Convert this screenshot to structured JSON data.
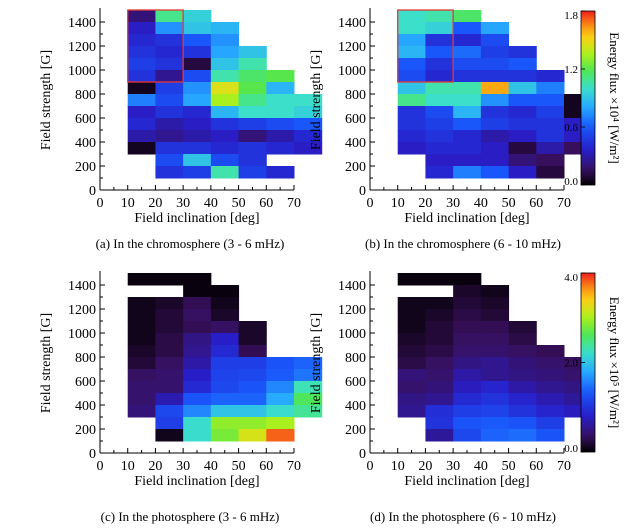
{
  "chart_data": [
    {
      "type": "heatmap",
      "id": "a",
      "caption": "(a) In the chromosphere (3 - 6 mHz)",
      "xlabel": "Field inclination [deg]",
      "ylabel": "Field strength [G]",
      "xlim": [
        0,
        70
      ],
      "ylim": [
        0,
        1500
      ],
      "xticks": [
        0,
        10,
        20,
        30,
        40,
        50,
        60,
        70
      ],
      "yticks": [
        0,
        200,
        400,
        600,
        800,
        1000,
        1200,
        1400
      ],
      "xticks_text": [
        "0",
        "10",
        "20",
        "30",
        "40",
        "50",
        "60",
        "70"
      ],
      "yticks_text": [
        "0",
        "200",
        "400",
        "600",
        "800",
        "1000",
        "1200",
        "1400"
      ],
      "cell": {
        "dx": 10,
        "dy": 100
      },
      "vmin": 0,
      "vmax": 1.8,
      "colorbar": "top",
      "highlight_box": {
        "x": [
          10,
          30
        ],
        "y": [
          900,
          1500
        ],
        "color": "#e53935"
      },
      "rows": [
        {
          "y0": 1400,
          "x0": 10,
          "values": [
            0.2,
            1.1,
            0.95
          ]
        },
        {
          "y0": 1300,
          "x0": 10,
          "values": [
            0.35,
            0.75,
            0.9,
            0.85
          ]
        },
        {
          "y0": 1200,
          "x0": 10,
          "values": [
            0.4,
            0.45,
            0.6,
            0.75
          ]
        },
        {
          "y0": 1100,
          "x0": 10,
          "values": [
            0.45,
            0.4,
            0.45,
            0.8,
            0.9
          ]
        },
        {
          "y0": 1000,
          "x0": 10,
          "values": [
            0.5,
            0.45,
            0.1,
            0.9,
            1.05
          ]
        },
        {
          "y0": 900,
          "x0": 10,
          "values": [
            0.45,
            0.25,
            0.55,
            1.05,
            1.15,
            1.2
          ]
        },
        {
          "y0": 800,
          "x0": 10,
          "values": [
            0.05,
            0.5,
            0.75,
            1.45,
            1.2,
            0.85
          ]
        },
        {
          "y0": 700,
          "x0": 10,
          "values": [
            0.7,
            0.55,
            0.8,
            1.35,
            1.1,
            1.0,
            1.0
          ]
        },
        {
          "y0": 600,
          "x0": 10,
          "values": [
            0.35,
            0.45,
            0.4,
            0.85,
            1.0,
            1.0,
            0.95
          ]
        },
        {
          "y0": 500,
          "x0": 10,
          "values": [
            0.4,
            0.3,
            0.35,
            0.45,
            0.5,
            0.55,
            0.6
          ]
        },
        {
          "y0": 400,
          "x0": 10,
          "values": [
            0.3,
            0.25,
            0.3,
            0.35,
            0.2,
            0.3,
            0.4
          ]
        },
        {
          "y0": 300,
          "x0": 10,
          "values": [
            0.05,
            0.45,
            0.45,
            0.4,
            0.45,
            0.4,
            0.35
          ]
        },
        {
          "y0": 200,
          "x0": 20,
          "values": [
            0.55,
            0.9,
            0.55,
            0.45
          ]
        },
        {
          "y0": 100,
          "x0": 20,
          "values": [
            0.45,
            0.5,
            1.05,
            0.5,
            0.4
          ]
        }
      ]
    },
    {
      "type": "heatmap",
      "id": "b",
      "caption": "(b) In the chromosphere (6 - 10 mHz)",
      "xlabel": "Field inclination [deg]",
      "ylabel": "Field strength [G]",
      "xlim": [
        0,
        70
      ],
      "ylim": [
        0,
        1500
      ],
      "xticks": [
        0,
        10,
        20,
        30,
        40,
        50,
        60,
        70
      ],
      "yticks": [
        0,
        200,
        400,
        600,
        800,
        1000,
        1200,
        1400
      ],
      "xticks_text": [
        "0",
        "10",
        "20",
        "30",
        "40",
        "50",
        "60",
        "70"
      ],
      "yticks_text": [
        "0",
        "200",
        "400",
        "600",
        "800",
        "1000",
        "1200",
        "1400"
      ],
      "cell": {
        "dx": 10,
        "dy": 100
      },
      "vmin": 0,
      "vmax": 1.8,
      "colorbar": "top",
      "highlight_box": {
        "x": [
          10,
          30
        ],
        "y": [
          900,
          1500
        ],
        "color": "#e53935"
      },
      "rows": [
        {
          "y0": 1400,
          "x0": 10,
          "values": [
            1.0,
            1.05,
            1.15
          ]
        },
        {
          "y0": 1300,
          "x0": 10,
          "values": [
            1.0,
            0.95,
            0.6,
            0.8
          ]
        },
        {
          "y0": 1200,
          "x0": 10,
          "values": [
            0.8,
            0.45,
            0.4,
            0.55
          ]
        },
        {
          "y0": 1100,
          "x0": 10,
          "values": [
            0.85,
            0.6,
            0.65,
            0.5,
            0.45
          ]
        },
        {
          "y0": 1000,
          "x0": 10,
          "values": [
            0.6,
            0.45,
            0.55,
            0.55,
            0.6
          ]
        },
        {
          "y0": 900,
          "x0": 10,
          "values": [
            0.55,
            0.4,
            0.45,
            0.45,
            0.45,
            0.4
          ]
        },
        {
          "y0": 800,
          "x0": 10,
          "values": [
            0.9,
            1.05,
            1.05,
            1.6,
            0.9,
            0.7
          ]
        },
        {
          "y0": 700,
          "x0": 10,
          "values": [
            1.1,
            1.0,
            1.0,
            0.75,
            0.6,
            0.6,
            0.05
          ]
        },
        {
          "y0": 600,
          "x0": 10,
          "values": [
            0.45,
            0.55,
            0.85,
            0.45,
            0.4,
            0.5,
            0.05
          ]
        },
        {
          "y0": 500,
          "x0": 10,
          "values": [
            0.45,
            0.5,
            0.6,
            0.5,
            0.45,
            0.45,
            0.35
          ]
        },
        {
          "y0": 400,
          "x0": 10,
          "values": [
            0.4,
            0.45,
            0.4,
            0.3,
            0.35,
            0.45,
            0.35
          ]
        },
        {
          "y0": 300,
          "x0": 10,
          "values": [
            0.35,
            0.4,
            0.4,
            0.35,
            0.1,
            0.3,
            0.15
          ]
        },
        {
          "y0": 200,
          "x0": 20,
          "values": [
            0.35,
            0.35,
            0.35,
            0.2,
            0.15
          ]
        },
        {
          "y0": 100,
          "x0": 20,
          "values": [
            0.4,
            0.7,
            0.6,
            0.35,
            0.1
          ]
        }
      ]
    },
    {
      "type": "heatmap",
      "id": "c",
      "caption": "(c) In the photosphere (3 - 6 mHz)",
      "xlabel": "Field inclination [deg]",
      "ylabel": "Field strength [G]",
      "xlim": [
        0,
        70
      ],
      "ylim": [
        0,
        1500
      ],
      "xticks": [
        0,
        10,
        20,
        30,
        40,
        50,
        60,
        70
      ],
      "yticks": [
        0,
        200,
        400,
        600,
        800,
        1000,
        1200,
        1400
      ],
      "xticks_text": [
        "0",
        "10",
        "20",
        "30",
        "40",
        "50",
        "60",
        "70"
      ],
      "yticks_text": [
        "0",
        "200",
        "400",
        "600",
        "800",
        "1000",
        "1200",
        "1400"
      ],
      "cell": {
        "dx": 10,
        "dy": 100
      },
      "vmin": 0,
      "vmax": 4.0,
      "colorbar": "bottom",
      "rows": [
        {
          "y0": 1400,
          "x0": 10,
          "values": [
            0.05,
            0.05,
            0.05
          ]
        },
        {
          "y0": 1300,
          "x0": 30,
          "values": [
            0.05,
            0.05
          ]
        },
        {
          "y0": 1200,
          "x0": 10,
          "values": [
            0.1,
            0.15,
            0.3,
            0.1
          ]
        },
        {
          "y0": 1100,
          "x0": 10,
          "values": [
            0.1,
            0.2,
            0.35,
            0.15
          ]
        },
        {
          "y0": 1000,
          "x0": 10,
          "values": [
            0.1,
            0.2,
            0.3,
            0.35,
            0.15
          ]
        },
        {
          "y0": 900,
          "x0": 10,
          "values": [
            0.1,
            0.25,
            0.5,
            0.8,
            0.15
          ]
        },
        {
          "y0": 800,
          "x0": 10,
          "values": [
            0.15,
            0.25,
            0.55,
            0.9,
            0.3
          ]
        },
        {
          "y0": 700,
          "x0": 10,
          "values": [
            0.2,
            0.35,
            0.65,
            1.1,
            1.1,
            1.3,
            1.4
          ]
        },
        {
          "y0": 600,
          "x0": 10,
          "values": [
            0.35,
            0.4,
            0.8,
            1.15,
            1.2,
            1.35,
            1.5
          ]
        },
        {
          "y0": 500,
          "x0": 10,
          "values": [
            0.4,
            0.4,
            0.9,
            1.2,
            1.3,
            1.6,
            2.3
          ]
        },
        {
          "y0": 400,
          "x0": 10,
          "values": [
            0.4,
            0.7,
            1.3,
            1.4,
            1.4,
            1.8,
            2.6
          ]
        },
        {
          "y0": 300,
          "x0": 10,
          "values": [
            0.45,
            1.2,
            1.6,
            2.0,
            2.0,
            2.2,
            2.4
          ]
        },
        {
          "y0": 200,
          "x0": 20,
          "values": [
            1.1,
            2.2,
            2.9,
            2.9,
            3.0
          ]
        },
        {
          "y0": 100,
          "x0": 20,
          "values": [
            0.1,
            2.2,
            2.8,
            3.2,
            3.8
          ]
        }
      ]
    },
    {
      "type": "heatmap",
      "id": "d",
      "caption": "(d) In the photosphere (6 - 10 mHz)",
      "xlabel": "Field inclination [deg]",
      "ylabel": "Field strength [G]",
      "xlim": [
        0,
        70
      ],
      "ylim": [
        0,
        1500
      ],
      "xticks": [
        0,
        10,
        20,
        30,
        40,
        50,
        60,
        70
      ],
      "yticks": [
        0,
        200,
        400,
        600,
        800,
        1000,
        1200,
        1400
      ],
      "xticks_text": [
        "0",
        "10",
        "20",
        "30",
        "40",
        "50",
        "60",
        "70"
      ],
      "yticks_text": [
        "0",
        "200",
        "400",
        "600",
        "800",
        "1000",
        "1200",
        "1400"
      ],
      "cell": {
        "dx": 10,
        "dy": 100
      },
      "vmin": 0,
      "vmax": 4.0,
      "colorbar": "bottom",
      "rows": [
        {
          "y0": 1400,
          "x0": 10,
          "values": [
            0.05,
            0.05,
            0.05
          ]
        },
        {
          "y0": 1300,
          "x0": 30,
          "values": [
            0.15,
            0.1
          ]
        },
        {
          "y0": 1200,
          "x0": 10,
          "values": [
            0.1,
            0.1,
            0.2,
            0.15
          ]
        },
        {
          "y0": 1100,
          "x0": 10,
          "values": [
            0.1,
            0.15,
            0.25,
            0.2
          ]
        },
        {
          "y0": 1000,
          "x0": 10,
          "values": [
            0.1,
            0.2,
            0.3,
            0.3,
            0.2
          ]
        },
        {
          "y0": 900,
          "x0": 10,
          "values": [
            0.15,
            0.2,
            0.35,
            0.35,
            0.25
          ]
        },
        {
          "y0": 800,
          "x0": 10,
          "values": [
            0.2,
            0.25,
            0.4,
            0.4,
            0.35,
            0.3
          ]
        },
        {
          "y0": 700,
          "x0": 10,
          "values": [
            0.25,
            0.35,
            0.5,
            0.55,
            0.45,
            0.4,
            0.35
          ]
        },
        {
          "y0": 600,
          "x0": 10,
          "values": [
            0.45,
            0.4,
            0.65,
            0.55,
            0.5,
            0.45,
            0.4
          ]
        },
        {
          "y0": 500,
          "x0": 10,
          "values": [
            0.4,
            0.45,
            0.75,
            0.85,
            0.65,
            0.55,
            0.5
          ]
        },
        {
          "y0": 400,
          "x0": 10,
          "values": [
            0.5,
            0.55,
            0.9,
            1.0,
            0.85,
            0.7,
            0.6
          ]
        },
        {
          "y0": 300,
          "x0": 10,
          "values": [
            0.55,
            0.95,
            1.1,
            1.15,
            1.0,
            0.85,
            0.75
          ]
        },
        {
          "y0": 200,
          "x0": 20,
          "values": [
            1.0,
            1.3,
            1.35,
            1.3,
            1.1
          ]
        },
        {
          "y0": 100,
          "x0": 20,
          "values": [
            0.6,
            1.2,
            1.4,
            1.45,
            1.3
          ]
        }
      ]
    }
  ],
  "colorbars": [
    {
      "id": "top",
      "min": 0,
      "max": 1.8,
      "ticks": [
        0,
        0.6,
        1.2,
        1.8
      ],
      "tick_labels": [
        "0.0",
        "0.6",
        "1.2",
        "1.8"
      ],
      "title": "Energy flux ×10⁴ [W/m²]"
    },
    {
      "id": "bottom",
      "min": 0,
      "max": 4.0,
      "ticks": [
        0,
        2.0,
        4.0
      ],
      "tick_labels": [
        "0.0",
        "2.0",
        "4.0"
      ],
      "title": "Energy flux ×10⁵ [W/m²]"
    }
  ]
}
